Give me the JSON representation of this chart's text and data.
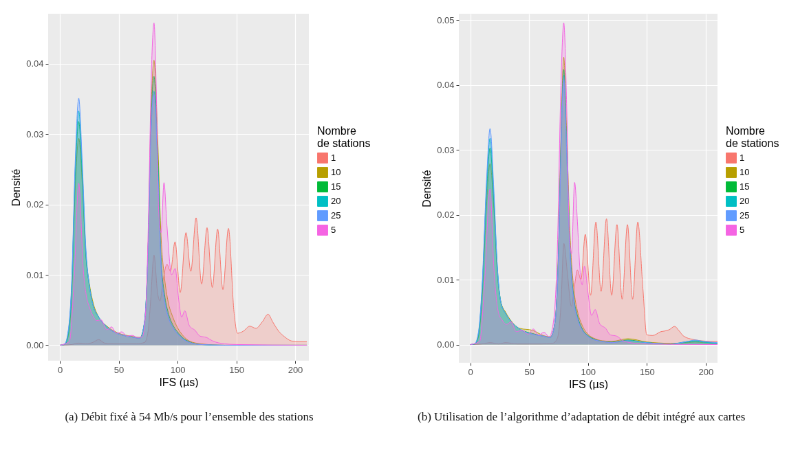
{
  "chart_data": [
    {
      "type": "area",
      "xlabel": "IFS (µs)",
      "ylabel": "Densité",
      "legend_title": "Nombre de stations",
      "legend": "right",
      "grid": true,
      "xlim": [
        -10,
        211.7
      ],
      "ylim": [
        -0.0022,
        0.0471
      ],
      "xticks": [
        0,
        50,
        100,
        150,
        200
      ],
      "yticks": [
        {
          "value": 0,
          "label": "0.00"
        },
        0.01,
        0.02,
        0.03,
        0.04
      ],
      "annotations": [
        "(a) Débit fixé à 54 Mb/s pour l’ensemble des stations"
      ],
      "series": [
        {
          "name": "1",
          "color": "#f8766d",
          "x": [
            0,
            10,
            16,
            22,
            28,
            33,
            38,
            45,
            55,
            65,
            72,
            75,
            77,
            80,
            83,
            85,
            88,
            91,
            94,
            97.9,
            102.3,
            107.2,
            111.3,
            115.8,
            120.5,
            125.1,
            129.6,
            134.1,
            138.6,
            143.3,
            148,
            151,
            156,
            161.4,
            166.7,
            172,
            177,
            181,
            186,
            191,
            197,
            203,
            210
          ],
          "values": [
            0,
            0.0001,
            0.0003,
            0.0002,
            0.0004,
            0.0008,
            0.0003,
            0.0002,
            0.0002,
            0.0002,
            0.0004,
            0.002,
            0.006,
            0.0128,
            0.0075,
            0.0063,
            0.0095,
            0.0115,
            0.0105,
            0.0147,
            0.0075,
            0.016,
            0.0105,
            0.0181,
            0.0087,
            0.0167,
            0.0082,
            0.0165,
            0.0079,
            0.0166,
            0.0048,
            0.0017,
            0.002,
            0.0027,
            0.0024,
            0.0033,
            0.0044,
            0.0033,
            0.002,
            0.0012,
            0.0006,
            0.0005,
            0.0005
          ]
        },
        {
          "name": "10",
          "color": "#b79f00",
          "x": [
            0,
            4,
            7,
            10,
            13,
            16,
            19,
            22,
            25,
            28,
            33,
            40,
            50,
            60,
            68,
            72,
            75,
            77,
            80,
            83,
            86,
            89,
            92,
            96,
            100,
            105,
            110,
            120,
            140,
            210
          ],
          "values": [
            0,
            0.0001,
            0.0012,
            0.007,
            0.022,
            0.0294,
            0.023,
            0.013,
            0.0088,
            0.0062,
            0.004,
            0.0027,
            0.0017,
            0.0013,
            0.0011,
            0.0033,
            0.014,
            0.03,
            0.0405,
            0.03,
            0.0155,
            0.0095,
            0.0062,
            0.004,
            0.0025,
            0.0013,
            0.0006,
            0.0002,
            0,
            0
          ]
        },
        {
          "name": "15",
          "color": "#00ba38",
          "x": [
            0,
            4,
            7,
            10,
            13,
            16,
            19,
            22,
            25,
            28,
            33,
            40,
            50,
            60,
            68,
            72,
            75,
            77,
            80,
            83,
            86,
            89,
            92,
            96,
            100,
            105,
            110,
            120,
            140,
            210
          ],
          "values": [
            0,
            0.0001,
            0.0015,
            0.008,
            0.024,
            0.0318,
            0.024,
            0.013,
            0.0085,
            0.0058,
            0.004,
            0.0026,
            0.0016,
            0.0012,
            0.001,
            0.0033,
            0.014,
            0.029,
            0.0382,
            0.028,
            0.0125,
            0.0072,
            0.0047,
            0.0029,
            0.0019,
            0.001,
            0.0005,
            0.0001,
            0,
            0
          ]
        },
        {
          "name": "20",
          "color": "#00bfc4",
          "x": [
            0,
            4,
            7,
            10,
            13,
            16,
            19,
            22,
            25,
            28,
            33,
            40,
            50,
            60,
            68,
            72,
            75,
            77,
            80,
            83,
            86,
            89,
            92,
            96,
            100,
            105,
            110,
            120,
            140,
            210
          ],
          "values": [
            0,
            0.0001,
            0.0018,
            0.0085,
            0.025,
            0.0333,
            0.025,
            0.0135,
            0.0085,
            0.0058,
            0.004,
            0.0026,
            0.0016,
            0.0012,
            0.001,
            0.0034,
            0.014,
            0.028,
            0.0361,
            0.027,
            0.0115,
            0.0065,
            0.0042,
            0.0026,
            0.0017,
            0.0009,
            0.0004,
            0.0001,
            0,
            0
          ]
        },
        {
          "name": "25",
          "color": "#619cff",
          "x": [
            0,
            4,
            7,
            10,
            13,
            16,
            19,
            22,
            25,
            28,
            33,
            40,
            50,
            60,
            68,
            72,
            75,
            77,
            80,
            83,
            86,
            89,
            92,
            96,
            100,
            105,
            110,
            120,
            140,
            210
          ],
          "values": [
            0,
            0.0002,
            0.002,
            0.009,
            0.026,
            0.0351,
            0.026,
            0.014,
            0.0085,
            0.0058,
            0.004,
            0.0026,
            0.0016,
            0.0012,
            0.001,
            0.0035,
            0.014,
            0.028,
            0.0356,
            0.026,
            0.011,
            0.0062,
            0.004,
            0.0025,
            0.0016,
            0.0008,
            0.0004,
            0.0001,
            0,
            0
          ]
        },
        {
          "name": "5",
          "color": "#f564e3",
          "x": [
            0,
            8,
            12,
            16,
            20,
            22,
            25.3,
            28,
            31.2,
            35,
            40,
            43.9,
            48,
            52.6,
            57,
            61.4,
            66,
            70,
            73,
            75,
            78,
            80,
            82,
            84,
            86,
            88.5,
            91,
            95,
            98,
            101,
            103.5,
            106.2,
            110,
            115,
            119,
            124.6,
            130,
            140,
            150,
            210
          ],
          "values": [
            0,
            0.0005,
            0.009,
            0.023,
            0.0105,
            0.0075,
            0.0053,
            0.0042,
            0.0035,
            0.0036,
            0.0022,
            0.0026,
            0.0017,
            0.0019,
            0.0013,
            0.0014,
            0.0011,
            0.0012,
            0.005,
            0.016,
            0.04,
            0.0458,
            0.036,
            0.019,
            0.016,
            0.0231,
            0.017,
            0.01,
            0.0109,
            0.0065,
            0.004,
            0.0049,
            0.0028,
            0.0021,
            0.0013,
            0.0011,
            0.0006,
            0.0002,
            0.0001,
            0
          ]
        }
      ]
    },
    {
      "type": "area",
      "xlabel": "IFS (µs)",
      "ylabel": "Densité",
      "legend_title": "Nombre de stations",
      "legend": "right",
      "grid": true,
      "xlim": [
        -9.7,
        210
      ],
      "ylim": [
        -0.0028,
        0.051
      ],
      "xticks": [
        0,
        50,
        100,
        150,
        200
      ],
      "yticks": [
        {
          "value": 0,
          "label": "0.00"
        },
        0.01,
        0.02,
        0.03,
        0.04,
        0.05
      ],
      "annotations": [
        "(b) Utilisation de l’algorithme d’adaptation de débit intégré aux cartes"
      ],
      "series": [
        {
          "name": "1",
          "color": "#f8766d",
          "x": [
            0,
            10,
            17,
            24,
            30,
            35,
            40,
            50,
            60,
            70,
            74,
            77,
            79.5,
            82.5,
            85.9,
            88.5,
            91,
            94,
            97.7,
            102.2,
            106.7,
            111.1,
            115.7,
            120.1,
            124.6,
            129,
            133.5,
            137.9,
            142.3,
            146.6,
            149.9,
            155,
            162,
            165.5,
            169,
            173.6,
            177,
            181.3,
            189,
            196,
            204,
            210
          ],
          "values": [
            0,
            0.0001,
            0.0003,
            0.0001,
            0.0003,
            0.0002,
            0.0001,
            0.0001,
            0.0001,
            0.0002,
            0.001,
            0.006,
            0.0156,
            0.011,
            0.0059,
            0.009,
            0.0115,
            0.01,
            0.017,
            0.0076,
            0.0189,
            0.0082,
            0.0194,
            0.0076,
            0.0185,
            0.007,
            0.0185,
            0.007,
            0.0189,
            0.0087,
            0.0015,
            0.0014,
            0.002,
            0.0021,
            0.0023,
            0.0028,
            0.0022,
            0.0013,
            0.0008,
            0.0006,
            0.0005,
            0.0005
          ]
        },
        {
          "name": "10",
          "color": "#b79f00",
          "x": [
            0,
            4,
            7,
            10,
            14,
            16.8,
            20,
            23,
            26,
            30,
            35,
            42,
            53,
            62,
            68,
            72,
            75,
            77,
            79.4,
            82,
            85,
            88,
            91,
            95,
            100,
            106,
            112,
            120,
            134,
            150,
            170,
            185,
            191,
            198,
            210
          ],
          "values": [
            0,
            0.0001,
            0.0012,
            0.007,
            0.022,
            0.0279,
            0.021,
            0.011,
            0.0066,
            0.005,
            0.0036,
            0.0025,
            0.0022,
            0.0014,
            0.0012,
            0.0035,
            0.015,
            0.032,
            0.0443,
            0.032,
            0.016,
            0.0085,
            0.0052,
            0.003,
            0.0016,
            0.0009,
            0.0006,
            0.0005,
            0.0009,
            0.0004,
            0.0002,
            0.0003,
            0.0004,
            0.0003,
            0.0002
          ]
        },
        {
          "name": "15",
          "color": "#00ba38",
          "x": [
            0,
            4,
            7,
            10,
            14,
            16.8,
            20,
            23,
            26,
            30,
            35,
            42,
            53,
            62,
            68,
            72,
            75,
            77,
            79.4,
            82,
            85,
            88,
            91,
            95,
            100,
            106,
            112,
            120,
            134,
            150,
            170,
            185,
            191,
            198,
            210
          ],
          "values": [
            0,
            0.0001,
            0.0015,
            0.008,
            0.024,
            0.0303,
            0.022,
            0.0115,
            0.0065,
            0.0048,
            0.0035,
            0.0024,
            0.0017,
            0.0013,
            0.0011,
            0.0035,
            0.015,
            0.031,
            0.0424,
            0.03,
            0.014,
            0.0072,
            0.0045,
            0.0025,
            0.0014,
            0.0008,
            0.0005,
            0.0004,
            0.0007,
            0.0003,
            0.0001,
            0.0004,
            0.0005,
            0.0004,
            0.0002
          ]
        },
        {
          "name": "20",
          "color": "#00bfc4",
          "x": [
            0,
            4,
            7,
            10,
            14,
            16.8,
            20,
            23,
            26,
            30,
            35,
            42,
            53,
            62,
            68,
            72,
            75,
            77,
            79.4,
            82,
            85,
            88,
            91,
            95,
            100,
            106,
            112,
            120,
            134,
            150,
            170,
            185,
            191,
            198,
            210
          ],
          "values": [
            0,
            0.0001,
            0.0018,
            0.0085,
            0.025,
            0.0318,
            0.023,
            0.012,
            0.0065,
            0.0048,
            0.0035,
            0.0024,
            0.0016,
            0.0013,
            0.0011,
            0.0035,
            0.014,
            0.03,
            0.0415,
            0.029,
            0.0135,
            0.0068,
            0.0042,
            0.0023,
            0.0013,
            0.0007,
            0.0005,
            0.0003,
            0.0006,
            0.0003,
            0.0001,
            0.0005,
            0.0006,
            0.0004,
            0.0002
          ]
        },
        {
          "name": "25",
          "color": "#619cff",
          "x": [
            0,
            4,
            7,
            10,
            14,
            16.8,
            20,
            23,
            26,
            30,
            35,
            42,
            53,
            62,
            68,
            72,
            75,
            77,
            79.4,
            82,
            85,
            88,
            91,
            95,
            100,
            106,
            112,
            120,
            134,
            150,
            170,
            185,
            191,
            198,
            210
          ],
          "values": [
            0,
            0.0002,
            0.002,
            0.009,
            0.026,
            0.0333,
            0.024,
            0.012,
            0.0065,
            0.0048,
            0.0035,
            0.0024,
            0.0016,
            0.0013,
            0.0011,
            0.0035,
            0.014,
            0.029,
            0.0408,
            0.029,
            0.013,
            0.0065,
            0.004,
            0.0022,
            0.0012,
            0.0007,
            0.0005,
            0.0003,
            0.0006,
            0.0003,
            0.0001,
            0.0005,
            0.0007,
            0.0005,
            0.0003
          ]
        },
        {
          "name": "5",
          "color": "#f564e3",
          "x": [
            0,
            8,
            12,
            16.8,
            20,
            24.1,
            27,
            30.8,
            34.7,
            39,
            44.3,
            49,
            53.6,
            58,
            62.7,
            67,
            71,
            74,
            77,
            79.4,
            82,
            84,
            86,
            88.6,
            91,
            93,
            95.1,
            97,
            100,
            103,
            106.1,
            110,
            115,
            119,
            124.4,
            130,
            140,
            150,
            210
          ],
          "values": [
            0,
            0.0005,
            0.009,
            0.024,
            0.012,
            0.0048,
            0.0038,
            0.0031,
            0.0035,
            0.002,
            0.0022,
            0.0016,
            0.0024,
            0.0015,
            0.0019,
            0.0012,
            0.004,
            0.015,
            0.04,
            0.0496,
            0.036,
            0.018,
            0.014,
            0.025,
            0.019,
            0.012,
            0.0092,
            0.0121,
            0.008,
            0.0045,
            0.0054,
            0.0032,
            0.0025,
            0.0015,
            0.0013,
            0.0006,
            0.0002,
            0.0001,
            0
          ]
        }
      ]
    }
  ]
}
